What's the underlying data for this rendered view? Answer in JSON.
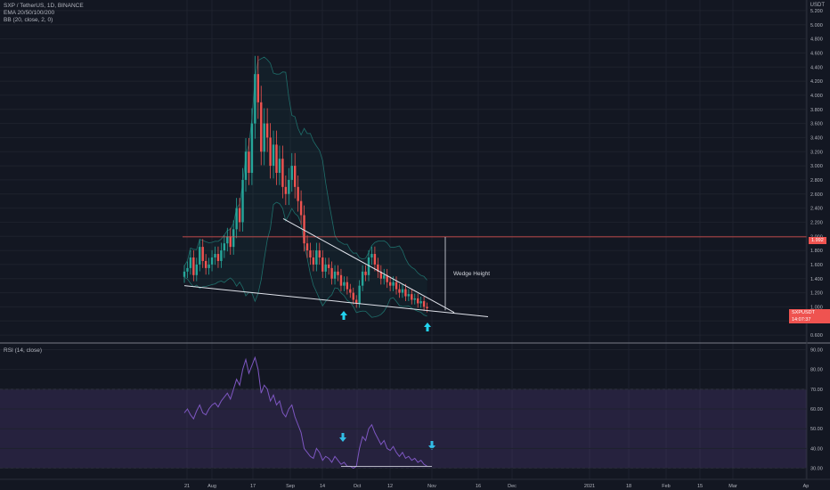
{
  "header": {
    "symbol_line": "SXP / TetherUS, 1D, BINANCE",
    "ema_line": "EMA 20/50/100/200",
    "bb_line": "BB (20, close, 2, 0)"
  },
  "rsi_header": "RSI (14, close)",
  "price_unit": "USDT",
  "price_tag": {
    "label": "SXPUSDT",
    "value": "14:07:37"
  },
  "level_tag": "1.992",
  "annotation": "Wedge Height",
  "colors": {
    "background": "#131722",
    "up": "#26a69a",
    "down": "#ef5350",
    "rsi_line": "#7e57c2",
    "arrow": "#22d3ee",
    "resistance": "#ef5350"
  },
  "chart_data": [
    {
      "type": "candlestick",
      "title": "SXP / TetherUS, 1D, BINANCE",
      "ylim": [
        0.5,
        5.3
      ],
      "yticks": [
        "5.200",
        "5.000",
        "4.800",
        "4.600",
        "4.400",
        "4.200",
        "4.000",
        "3.800",
        "3.600",
        "3.400",
        "3.200",
        "3.000",
        "2.800",
        "2.600",
        "2.400",
        "2.200",
        "2.000",
        "1.800",
        "1.600",
        "1.400",
        "1.200",
        "1.000",
        "0.800",
        "0.600"
      ],
      "xticks": [
        "21",
        "Aug",
        "17",
        "Sep",
        "14",
        "Oct",
        "12",
        "Nov",
        "16",
        "Dec",
        "2021",
        "18",
        "Feb",
        "15",
        "Mar",
        "Ap"
      ],
      "horizontal_level": 1.992,
      "close_series": [
        1.5,
        1.55,
        1.7,
        1.45,
        1.6,
        1.85,
        1.65,
        1.55,
        1.6,
        1.7,
        1.75,
        1.65,
        1.8,
        1.9,
        2.0,
        1.85,
        2.1,
        2.4,
        2.2,
        2.8,
        3.2,
        2.9,
        3.6,
        4.3,
        3.9,
        3.2,
        3.6,
        3.4,
        3.0,
        3.3,
        2.9,
        3.1,
        2.7,
        2.6,
        2.8,
        3.0,
        2.7,
        2.5,
        2.3,
        1.9,
        1.8,
        1.7,
        1.6,
        1.8,
        1.7,
        1.5,
        1.6,
        1.55,
        1.4,
        1.5,
        1.45,
        1.3,
        1.35,
        1.25,
        1.2,
        1.1,
        1.05,
        1.3,
        1.5,
        1.45,
        1.7,
        1.75,
        1.6,
        1.5,
        1.4,
        1.45,
        1.35,
        1.3,
        1.35,
        1.25,
        1.2,
        1.25,
        1.15,
        1.18,
        1.1,
        1.12,
        1.05,
        1.08,
        1.0,
        0.98
      ],
      "wedge_upper": {
        "from": [
          "Aug 31",
          2.25
        ],
        "to": [
          "Nov 2",
          0.92
        ]
      },
      "wedge_lower": {
        "from": [
          "Jul 21",
          1.3
        ],
        "to": [
          "Nov 12",
          0.86
        ]
      },
      "wedge_height_from": 1.99,
      "wedge_height_to": 0.95
    },
    {
      "type": "line",
      "title": "RSI (14, close)",
      "ylim": [
        28,
        92
      ],
      "yticks": [
        "90.00",
        "80.00",
        "70.00",
        "60.00",
        "50.00",
        "40.00",
        "30.00"
      ],
      "bands": [
        70,
        30
      ],
      "series": [
        {
          "name": "RSI (14, close)",
          "values": [
            58,
            60,
            57,
            55,
            59,
            62,
            58,
            57,
            60,
            62,
            63,
            61,
            64,
            66,
            68,
            65,
            70,
            75,
            72,
            80,
            85,
            78,
            82,
            86,
            80,
            68,
            72,
            70,
            64,
            67,
            62,
            64,
            58,
            56,
            60,
            62,
            56,
            52,
            48,
            40,
            38,
            36,
            35,
            40,
            38,
            34,
            36,
            35,
            33,
            36,
            34,
            32,
            33,
            31,
            31,
            30,
            31,
            40,
            46,
            44,
            50,
            52,
            48,
            45,
            42,
            44,
            40,
            39,
            41,
            38,
            36,
            38,
            35,
            36,
            34,
            35,
            33,
            34,
            32,
            31
          ]
        }
      ]
    }
  ]
}
